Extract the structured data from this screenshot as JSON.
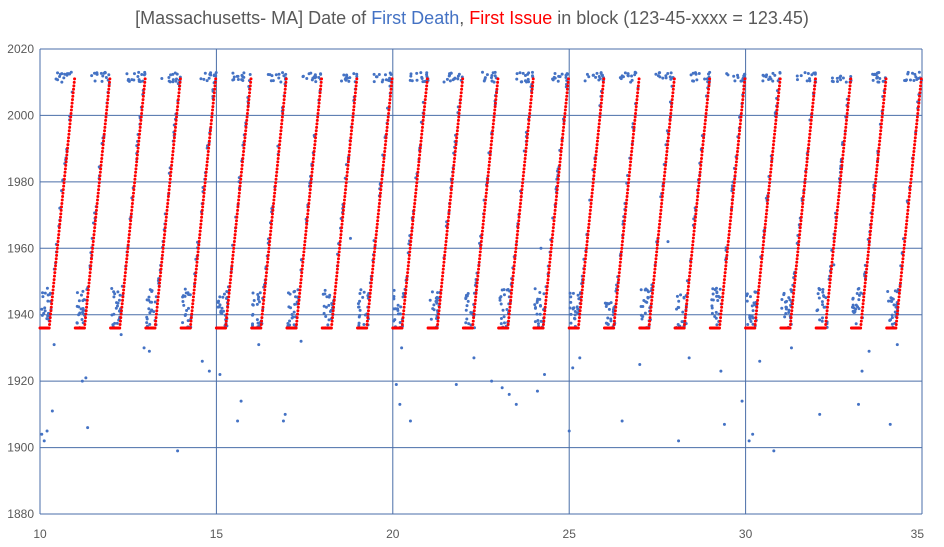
{
  "chart_data": {
    "type": "scatter",
    "title_parts": {
      "prefix": "[Massachusetts- MA] Date of ",
      "series1_label": "First Death",
      "separator": ", ",
      "series2_label": "First Issue",
      "suffix": " in block (123-45-xxxx = 123.45)"
    },
    "xlim": [
      10,
      35
    ],
    "ylim": [
      1880,
      2020
    ],
    "x_ticks": [
      "10",
      "15",
      "20",
      "25",
      "30",
      "35"
    ],
    "y_ticks": [
      "1880",
      "1900",
      "1920",
      "1940",
      "1960",
      "1980",
      "2000",
      "2020"
    ],
    "grid": true,
    "colors": {
      "first_death": "#4472C4",
      "first_issue": "#FF0000",
      "grid": "#4A6EA8",
      "text": "#595959"
    },
    "series_first_issue": {
      "name": "First Issue",
      "description": "Per whole-number block: flat at 1936 for x=n+0.0…n+0.26, then rising ~linearly to ~2011 at x=n+0.98",
      "segments": [
        {
          "x_start": 10.0,
          "x_flat_end": 10.26,
          "x_end": 10.98,
          "y_flat": 1936,
          "y_end": 2011
        },
        {
          "x_start": 11.0,
          "x_flat_end": 11.26,
          "x_end": 11.98,
          "y_flat": 1936,
          "y_end": 2011
        },
        {
          "x_start": 12.0,
          "x_flat_end": 12.26,
          "x_end": 12.98,
          "y_flat": 1936,
          "y_end": 2011
        },
        {
          "x_start": 13.0,
          "x_flat_end": 13.26,
          "x_end": 13.98,
          "y_flat": 1936,
          "y_end": 2011
        },
        {
          "x_start": 14.0,
          "x_flat_end": 14.26,
          "x_end": 14.98,
          "y_flat": 1936,
          "y_end": 2011
        },
        {
          "x_start": 15.0,
          "x_flat_end": 15.26,
          "x_end": 15.98,
          "y_flat": 1936,
          "y_end": 2011
        },
        {
          "x_start": 16.0,
          "x_flat_end": 16.26,
          "x_end": 16.98,
          "y_flat": 1936,
          "y_end": 2011
        },
        {
          "x_start": 17.0,
          "x_flat_end": 17.26,
          "x_end": 17.98,
          "y_flat": 1936,
          "y_end": 2011
        },
        {
          "x_start": 18.0,
          "x_flat_end": 18.26,
          "x_end": 18.98,
          "y_flat": 1936,
          "y_end": 2011
        },
        {
          "x_start": 19.0,
          "x_flat_end": 19.26,
          "x_end": 19.98,
          "y_flat": 1936,
          "y_end": 2011
        },
        {
          "x_start": 20.0,
          "x_flat_end": 20.26,
          "x_end": 20.98,
          "y_flat": 1936,
          "y_end": 2011
        },
        {
          "x_start": 21.0,
          "x_flat_end": 21.26,
          "x_end": 21.98,
          "y_flat": 1936,
          "y_end": 2011
        },
        {
          "x_start": 22.0,
          "x_flat_end": 22.26,
          "x_end": 22.98,
          "y_flat": 1936,
          "y_end": 2011
        },
        {
          "x_start": 23.0,
          "x_flat_end": 23.26,
          "x_end": 23.98,
          "y_flat": 1936,
          "y_end": 2011
        },
        {
          "x_start": 24.0,
          "x_flat_end": 24.26,
          "x_end": 24.98,
          "y_flat": 1936,
          "y_end": 2011
        },
        {
          "x_start": 25.0,
          "x_flat_end": 25.26,
          "x_end": 25.98,
          "y_flat": 1936,
          "y_end": 2011
        },
        {
          "x_start": 26.0,
          "x_flat_end": 26.26,
          "x_end": 26.98,
          "y_flat": 1936,
          "y_end": 2011
        },
        {
          "x_start": 27.0,
          "x_flat_end": 27.26,
          "x_end": 27.98,
          "y_flat": 1936,
          "y_end": 2011
        },
        {
          "x_start": 28.0,
          "x_flat_end": 28.26,
          "x_end": 28.98,
          "y_flat": 1936,
          "y_end": 2011
        },
        {
          "x_start": 29.0,
          "x_flat_end": 29.26,
          "x_end": 29.98,
          "y_flat": 1936,
          "y_end": 2011
        },
        {
          "x_start": 30.0,
          "x_flat_end": 30.26,
          "x_end": 30.98,
          "y_flat": 1936,
          "y_end": 2011
        },
        {
          "x_start": 31.0,
          "x_flat_end": 31.26,
          "x_end": 31.98,
          "y_flat": 1936,
          "y_end": 2011
        },
        {
          "x_start": 32.0,
          "x_flat_end": 32.26,
          "x_end": 32.98,
          "y_flat": 1936,
          "y_end": 2011
        },
        {
          "x_start": 33.0,
          "x_flat_end": 33.26,
          "x_end": 33.98,
          "y_flat": 1936,
          "y_end": 2011
        },
        {
          "x_start": 34.0,
          "x_flat_end": 34.26,
          "x_end": 34.98,
          "y_flat": 1936,
          "y_end": 2011
        }
      ]
    },
    "series_first_death": {
      "name": "First Death",
      "description": "Per block: cluster of deaths 1936–1948 near the start, points slightly above the issue ramp, a band of points ~2010–2013 at the top, and scattered early outliers",
      "outliers": [
        [
          10.05,
          1904
        ],
        [
          10.12,
          1902
        ],
        [
          10.2,
          1905
        ],
        [
          10.35,
          1911
        ],
        [
          10.4,
          1931
        ],
        [
          10.3,
          1944
        ],
        [
          11.2,
          1920
        ],
        [
          11.35,
          1906
        ],
        [
          11.3,
          1921
        ],
        [
          12.3,
          1934
        ],
        [
          12.95,
          1930
        ],
        [
          13.1,
          1929
        ],
        [
          13.9,
          1899
        ],
        [
          14.6,
          1926
        ],
        [
          14.8,
          1923
        ],
        [
          15.1,
          1922
        ],
        [
          15.6,
          1908
        ],
        [
          15.7,
          1914
        ],
        [
          16.2,
          1931
        ],
        [
          16.9,
          1908
        ],
        [
          16.95,
          1910
        ],
        [
          17.4,
          1932
        ],
        [
          20.1,
          1919
        ],
        [
          20.2,
          1913
        ],
        [
          20.25,
          1930
        ],
        [
          20.5,
          1908
        ],
        [
          21.8,
          1919
        ],
        [
          22.3,
          1927
        ],
        [
          22.8,
          1920
        ],
        [
          23.1,
          1918
        ],
        [
          23.3,
          1916
        ],
        [
          23.5,
          1913
        ],
        [
          24.1,
          1917
        ],
        [
          24.3,
          1922
        ],
        [
          25.0,
          1905
        ],
        [
          25.1,
          1924
        ],
        [
          25.3,
          1927
        ],
        [
          26.5,
          1908
        ],
        [
          27.0,
          1925
        ],
        [
          28.1,
          1902
        ],
        [
          28.4,
          1927
        ],
        [
          29.3,
          1923
        ],
        [
          29.4,
          1907
        ],
        [
          29.9,
          1914
        ],
        [
          30.1,
          1902
        ],
        [
          30.2,
          1904
        ],
        [
          30.4,
          1926
        ],
        [
          30.8,
          1899
        ],
        [
          31.3,
          1930
        ],
        [
          32.1,
          1910
        ],
        [
          33.2,
          1913
        ],
        [
          33.3,
          1923
        ],
        [
          33.5,
          1929
        ],
        [
          34.1,
          1907
        ],
        [
          34.3,
          1931
        ],
        [
          32.5,
          1955
        ],
        [
          24.2,
          1960
        ],
        [
          27.8,
          1962
        ],
        [
          18.8,
          1963
        ]
      ]
    }
  }
}
